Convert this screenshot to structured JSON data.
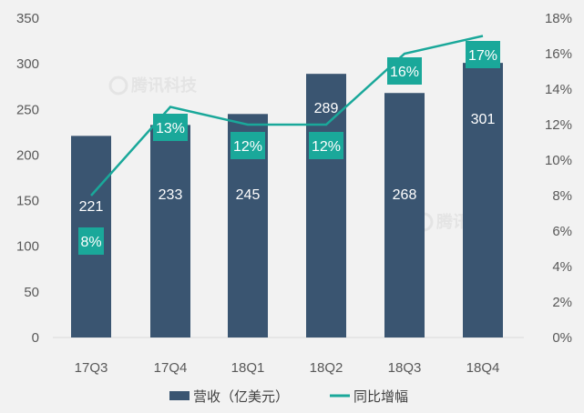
{
  "chart_data": {
    "type": "bar+line",
    "categories": [
      "17Q3",
      "17Q4",
      "18Q1",
      "18Q2",
      "18Q3",
      "18Q4"
    ],
    "series": [
      {
        "name": "营收（亿美元）",
        "type": "bar",
        "axis": "left",
        "values": [
          221,
          233,
          245,
          289,
          268,
          301
        ],
        "labels": [
          "221",
          "233",
          "245",
          "289",
          "268",
          "301"
        ],
        "color": "#3a5571"
      },
      {
        "name": "同比增幅",
        "type": "line",
        "axis": "right",
        "values": [
          8,
          13,
          12,
          12,
          16,
          17
        ],
        "labels": [
          "8%",
          "13%",
          "12%",
          "12%",
          "16%",
          "17%"
        ],
        "color": "#1aa89a"
      }
    ],
    "left_axis": {
      "ylim": [
        0,
        350
      ],
      "ticks": [
        "0",
        "50",
        "100",
        "150",
        "200",
        "250",
        "300",
        "350"
      ]
    },
    "right_axis": {
      "ylim": [
        0,
        18
      ],
      "ticks": [
        "0%",
        "2%",
        "4%",
        "6%",
        "8%",
        "10%",
        "12%",
        "14%",
        "16%",
        "18%"
      ]
    },
    "grid": false,
    "legend": "bottom",
    "watermark": "腾讯科技"
  }
}
